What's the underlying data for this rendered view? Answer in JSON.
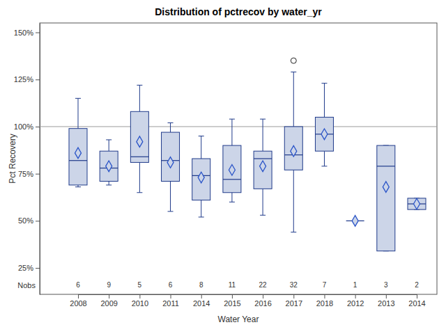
{
  "chart_data": {
    "type": "box",
    "title": "Distribution of pctrecov by water_yr",
    "x_label": "Water Year",
    "y_label": "Pct Recovery",
    "categories": [
      "2008",
      "2009",
      "2010",
      "2011",
      "2014",
      "2015",
      "2016",
      "2017",
      "2018",
      "2012",
      "2013",
      "2014"
    ],
    "stats": {
      "min": [
        68,
        69,
        65,
        55,
        52,
        60,
        53,
        44,
        79,
        50,
        34,
        56
      ],
      "q1": [
        69,
        71,
        81,
        71,
        61,
        65,
        67,
        77,
        87,
        50,
        34,
        56
      ],
      "median": [
        82,
        78,
        84,
        82,
        74,
        72,
        83,
        85,
        96,
        50,
        79,
        59
      ],
      "q3": [
        99,
        87,
        108,
        97,
        83,
        90,
        87,
        100,
        105,
        50,
        90,
        62
      ],
      "max": [
        115,
        93,
        122,
        102,
        95,
        104,
        104,
        129,
        123,
        50,
        90,
        62
      ],
      "mean": [
        86,
        79,
        92,
        81,
        73,
        77,
        79,
        87,
        96,
        50,
        68,
        59
      ]
    },
    "outliers": [
      [],
      [],
      [],
      [],
      [],
      [],
      [],
      [
        135
      ],
      [],
      [],
      [],
      []
    ],
    "nobs_label": "Nobs",
    "nobs": [
      6,
      9,
      5,
      6,
      8,
      11,
      22,
      32,
      7,
      1,
      3,
      2
    ],
    "reference_line": 100,
    "color": "#ccd5e8",
    "ylim": [
      11,
      155
    ],
    "yticks": [
      {
        "value": 25,
        "label": "25%"
      },
      {
        "value": 50,
        "label": "50%"
      },
      {
        "value": 75,
        "label": "75%"
      },
      {
        "value": 100,
        "label": "100%"
      },
      {
        "value": 125,
        "label": "125%"
      },
      {
        "value": 150,
        "label": "150%"
      }
    ]
  }
}
